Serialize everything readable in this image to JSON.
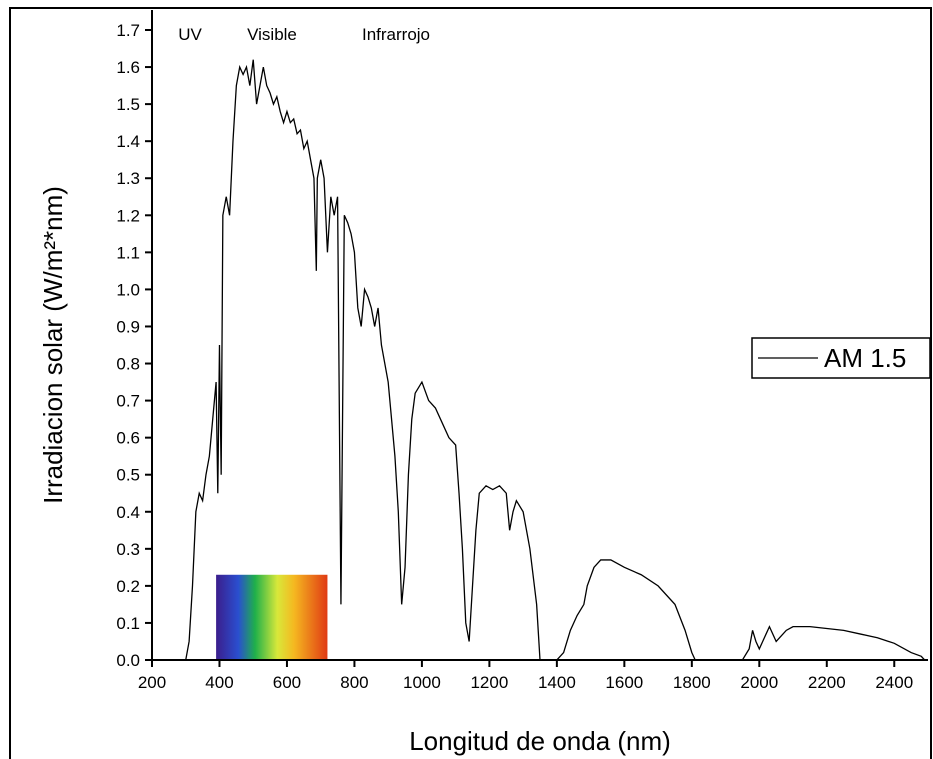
{
  "chart_data": {
    "type": "line",
    "region_labels": [
      "UV",
      "Visible",
      "Infrarrojo"
    ],
    "x_label": "Longitud de onda (nm)",
    "y_label": "Irradiacion solar (W/m²*nm)",
    "xlim": [
      200,
      2500
    ],
    "ylim": [
      0,
      1.7
    ],
    "xticks": [
      200,
      400,
      600,
      800,
      1000,
      1200,
      1400,
      1600,
      1800,
      2000,
      2200,
      2400
    ],
    "yticks": [
      {
        "value": 0,
        "label": "0.0"
      },
      0.1,
      0.2,
      0.3,
      0.4,
      0.5,
      0.6,
      0.7,
      0.8,
      0.9,
      {
        "value": 1,
        "label": "1.0"
      },
      1.1,
      1.2,
      1.3,
      1.4,
      1.5,
      1.6,
      1.7
    ],
    "visible_band": {
      "x": [
        390,
        720
      ],
      "y": [
        0,
        0.23
      ]
    },
    "legend": "right",
    "x": [
      280,
      300,
      310,
      320,
      330,
      340,
      350,
      360,
      370,
      380,
      390,
      395,
      400,
      405,
      410,
      420,
      430,
      440,
      450,
      460,
      470,
      480,
      490,
      500,
      510,
      520,
      530,
      540,
      550,
      560,
      570,
      580,
      590,
      600,
      610,
      620,
      630,
      640,
      650,
      660,
      670,
      680,
      687,
      690,
      700,
      710,
      720,
      730,
      740,
      750,
      760,
      770,
      780,
      790,
      800,
      810,
      820,
      830,
      840,
      850,
      860,
      870,
      880,
      900,
      910,
      920,
      930,
      940,
      950,
      960,
      970,
      980,
      1000,
      1020,
      1040,
      1060,
      1080,
      1100,
      1110,
      1120,
      1130,
      1140,
      1150,
      1160,
      1170,
      1190,
      1210,
      1230,
      1250,
      1260,
      1270,
      1280,
      1300,
      1320,
      1340,
      1350,
      1400,
      1420,
      1440,
      1460,
      1480,
      1490,
      1510,
      1530,
      1560,
      1600,
      1650,
      1700,
      1750,
      1780,
      1800,
      1810,
      1950,
      1970,
      1980,
      1990,
      2000,
      2020,
      2030,
      2050,
      2080,
      2100,
      2150,
      2200,
      2250,
      2300,
      2350,
      2400,
      2450,
      2480,
      2490
    ],
    "series": [
      {
        "name": "AM 1.5",
        "color": "#000000",
        "values": [
          0,
          0,
          0.05,
          0.2,
          0.4,
          0.45,
          0.43,
          0.5,
          0.55,
          0.65,
          0.75,
          0.45,
          0.85,
          0.5,
          1.2,
          1.25,
          1.2,
          1.4,
          1.55,
          1.6,
          1.58,
          1.6,
          1.55,
          1.62,
          1.5,
          1.55,
          1.6,
          1.55,
          1.53,
          1.5,
          1.52,
          1.48,
          1.45,
          1.48,
          1.45,
          1.46,
          1.42,
          1.43,
          1.38,
          1.4,
          1.35,
          1.3,
          1.05,
          1.3,
          1.35,
          1.3,
          1.1,
          1.25,
          1.2,
          1.25,
          0.15,
          1.2,
          1.18,
          1.15,
          1.1,
          0.95,
          0.9,
          1.0,
          0.98,
          0.95,
          0.9,
          0.95,
          0.85,
          0.75,
          0.65,
          0.55,
          0.4,
          0.15,
          0.25,
          0.5,
          0.65,
          0.72,
          0.75,
          0.7,
          0.68,
          0.64,
          0.6,
          0.58,
          0.45,
          0.3,
          0.1,
          0.05,
          0.2,
          0.35,
          0.45,
          0.47,
          0.46,
          0.47,
          0.45,
          0.35,
          0.4,
          0.43,
          0.4,
          0.3,
          0.15,
          0,
          0,
          0.02,
          0.08,
          0.12,
          0.15,
          0.2,
          0.25,
          0.27,
          0.27,
          0.25,
          0.23,
          0.2,
          0.15,
          0.08,
          0.02,
          0,
          0,
          0.03,
          0.08,
          0.05,
          0.03,
          0.07,
          0.09,
          0.05,
          0.08,
          0.09,
          0.09,
          0.085,
          0.08,
          0.07,
          0.06,
          0.045,
          0.02,
          0.01,
          0
        ]
      }
    ]
  }
}
